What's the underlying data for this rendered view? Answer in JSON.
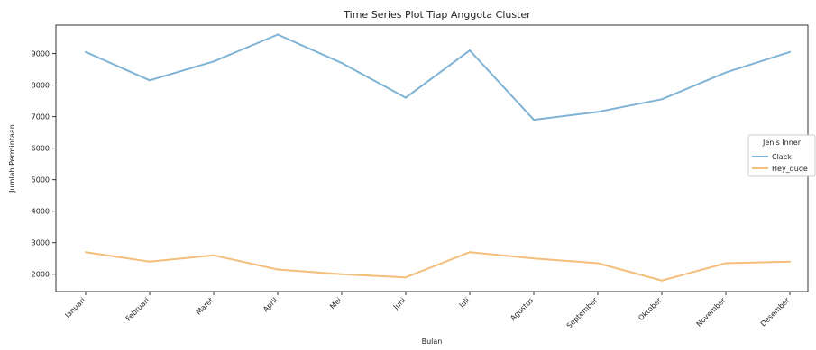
{
  "chart_data": {
    "type": "line",
    "title": "Time Series Plot Tiap Anggota Cluster",
    "xlabel": "Bulan",
    "ylabel": "Jumlah Permintaan",
    "categories": [
      "Januari",
      "Februari",
      "Maret",
      "April",
      "Mei",
      "Juni",
      "Juli",
      "Agustus",
      "September",
      "Oktober",
      "November",
      "Desember"
    ],
    "yticks": [
      2000,
      3000,
      4000,
      5000,
      6000,
      7000,
      8000,
      9000
    ],
    "ylim": [
      1450,
      9900
    ],
    "grid": false,
    "legend": {
      "title": "Jenis Inner",
      "placement": "center-right"
    },
    "series": [
      {
        "name": "Clack",
        "color": "#7fb3d5",
        "values": [
          9050,
          8150,
          8750,
          9600,
          8700,
          7600,
          9100,
          6900,
          7150,
          7550,
          8400,
          9050
        ]
      },
      {
        "name": "Hey_dude",
        "color": "#f3bf7a",
        "values": [
          2700,
          2400,
          2600,
          2150,
          2000,
          1900,
          2700,
          2500,
          2350,
          1800,
          2350,
          2400
        ]
      }
    ]
  }
}
